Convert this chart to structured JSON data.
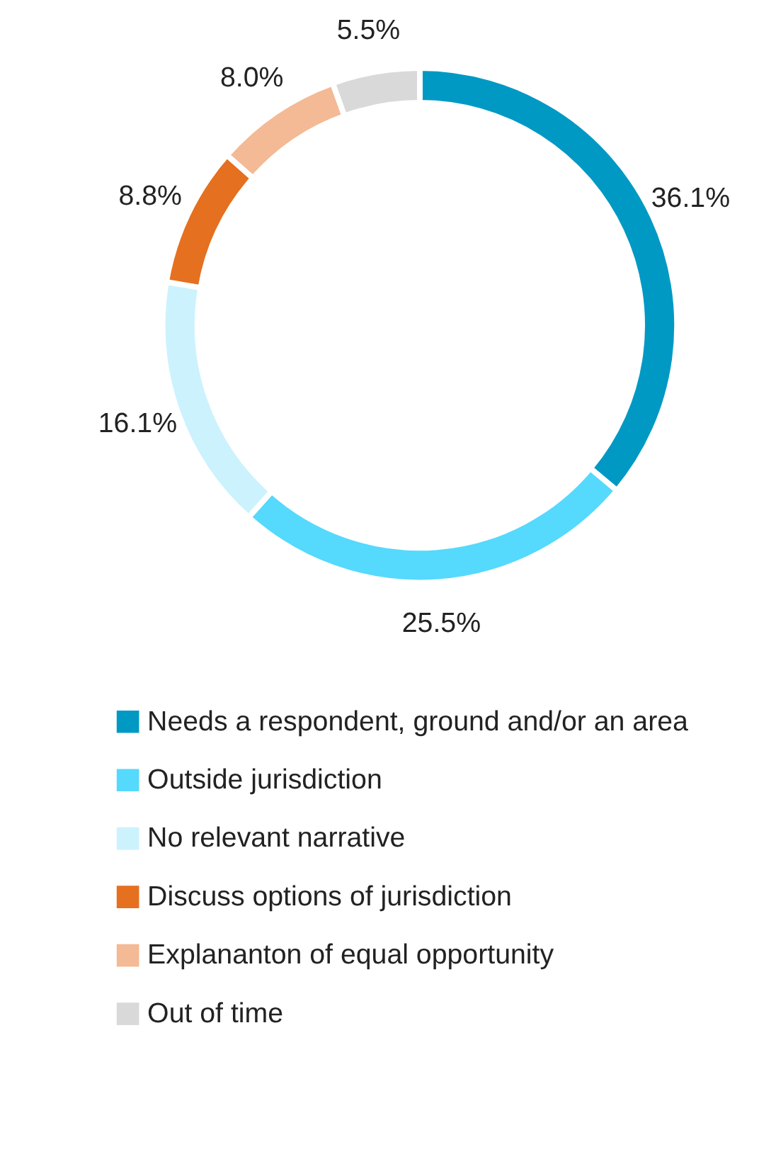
{
  "chart_data": {
    "type": "donut",
    "categories": [
      "Needs a respondent, ground and/or an area",
      "Outside jurisdiction",
      "No relevant narrative",
      "Discuss options of jurisdiction",
      "Explananton of equal opportunity",
      "Out of time"
    ],
    "values": [
      36.1,
      25.5,
      16.1,
      8.8,
      8.0,
      5.5
    ],
    "value_labels": [
      "36.1%",
      "25.5%",
      "16.1%",
      "8.8%",
      "8.0%",
      "5.5%"
    ],
    "colors": [
      "#0099c4",
      "#55d9fd",
      "#ccf2fd",
      "#e5701f",
      "#f4b995",
      "#d9d9d9"
    ],
    "legend": "bottom"
  }
}
